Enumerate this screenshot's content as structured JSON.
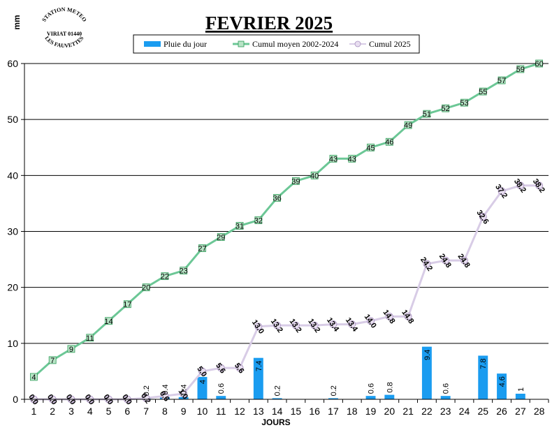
{
  "chart_data": {
    "type": "bar",
    "title": "FEVRIER 2025",
    "ylabel": "mm",
    "xlabel": "JOURS",
    "ylim": [
      0,
      60
    ],
    "yticks": [
      0,
      10,
      20,
      30,
      40,
      50,
      60
    ],
    "grid": true,
    "legend_position": "top",
    "categories": [
      "1",
      "2",
      "3",
      "4",
      "5",
      "6",
      "7",
      "8",
      "9",
      "10",
      "11",
      "12",
      "13",
      "14",
      "15",
      "16",
      "17",
      "18",
      "19",
      "20",
      "21",
      "22",
      "23",
      "24",
      "25",
      "26",
      "27",
      "28"
    ],
    "series": [
      {
        "name": "Pluie du jour",
        "kind": "bar",
        "color": "#1a9cf0",
        "values": [
          0,
          0,
          0,
          0,
          0,
          0,
          0.2,
          0.4,
          0.4,
          4,
          0.6,
          0,
          7.4,
          0.2,
          0,
          0,
          0.2,
          0,
          0.6,
          0.8,
          0,
          9.4,
          0.6,
          0,
          7.8,
          4.6,
          1,
          0
        ],
        "labels": [
          "",
          "",
          "",
          "",
          "",
          "",
          "0.2",
          "0.4",
          "0.4",
          "4",
          "0.6",
          "",
          "7.4",
          "0.2",
          "",
          "",
          "0.2",
          "",
          "0.6",
          "0.8",
          "",
          "9.4",
          "0.6",
          "",
          "7.8",
          "4.6",
          "1",
          ""
        ]
      },
      {
        "name": "Cumul moyen 2002-2024",
        "kind": "line",
        "color": "#6cc796",
        "marker_color": "#b8e4c6",
        "values": [
          4,
          7,
          9,
          11,
          14,
          17,
          20,
          22,
          23,
          27,
          29,
          31,
          32,
          36,
          39,
          40,
          43,
          43,
          45,
          46,
          49,
          51,
          52,
          53,
          55,
          57,
          59,
          60
        ],
        "labels": [
          "4",
          "7",
          "9",
          "11",
          "14",
          "17",
          "20",
          "22",
          "23",
          "27",
          "29",
          "31",
          "32",
          "36",
          "39",
          "40",
          "43",
          "43",
          "45",
          "46",
          "49",
          "51",
          "52",
          "53",
          "55",
          "57",
          "59",
          "60"
        ]
      },
      {
        "name": "Cumul 2025",
        "kind": "line",
        "color": "#d8cce6",
        "marker_color": "#e8def0",
        "values": [
          0,
          0,
          0,
          0,
          0,
          0,
          0.2,
          0.6,
          1.0,
          5.0,
          5.6,
          5.6,
          13.0,
          13.2,
          13.2,
          13.2,
          13.4,
          13.4,
          14.0,
          14.8,
          14.8,
          24.2,
          24.8,
          24.8,
          32.6,
          37.2,
          38.2,
          38.2
        ],
        "labels": [
          "0.0",
          "0.0",
          "0.0",
          "0.0",
          "0.0",
          "0.0",
          "0.2",
          "0.6",
          "1.0",
          "5.0",
          "5.6",
          "5.6",
          "13.0",
          "13.2",
          "13.2",
          "13.2",
          "13.4",
          "13.4",
          "14.0",
          "14.8",
          "14.8",
          "24.2",
          "24.8",
          "24.8",
          "32.6",
          "37.2",
          "38.2",
          "38.2"
        ]
      }
    ]
  },
  "stamp": {
    "top_text": "STATION METEO",
    "middle_text": "VIRIAT 01440",
    "bottom_text": "LES FAUVETTES"
  }
}
